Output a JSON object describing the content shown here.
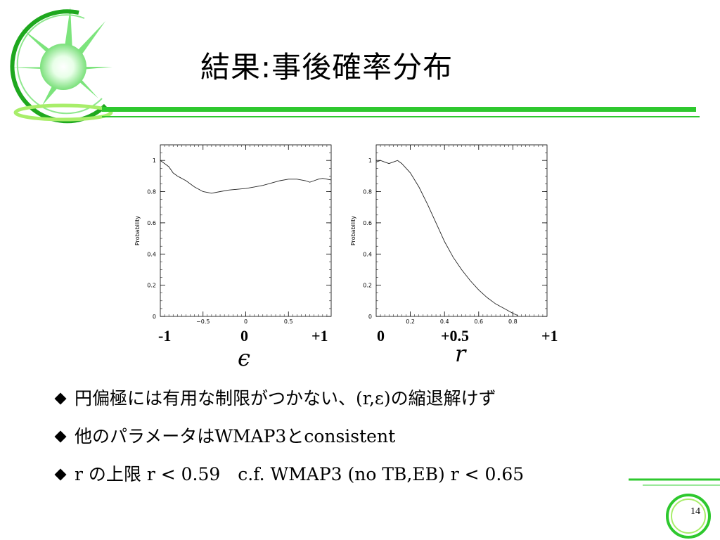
{
  "slide": {
    "title": "結果:事後確率分布",
    "page_number": "14"
  },
  "colors": {
    "accent": "#2ec82e",
    "light_green": "#9be89b",
    "axis": "#000000"
  },
  "icons": {
    "logo": "green-burst-logo-icon",
    "bullet": "diamond-bullet-icon"
  },
  "bullets": [
    "円偏極には有用な制限がつかない、(r,ε)の縮退解けず",
    "他のパラメータはWMAP3とconsistent",
    "r の上限 r < 0.59　c.f. WMAP3 (no TB,EB)  r < 0.65"
  ],
  "chart_data": [
    {
      "type": "line",
      "ylabel": "Probability",
      "xlim": [
        -1,
        1
      ],
      "ylim": [
        0,
        1.1
      ],
      "xticks": [
        "−0.5",
        "0",
        "0.5"
      ],
      "yticks": [
        "0",
        "0.2",
        "0.4",
        "0.6",
        "0.8",
        "1"
      ],
      "big_ticks": [
        "-1",
        "0",
        "+1"
      ],
      "variable_label": "ϵ",
      "x": [
        -1.0,
        -0.95,
        -0.9,
        -0.85,
        -0.8,
        -0.7,
        -0.6,
        -0.5,
        -0.4,
        -0.3,
        -0.2,
        -0.1,
        0.0,
        0.1,
        0.2,
        0.3,
        0.4,
        0.5,
        0.6,
        0.7,
        0.75,
        0.8,
        0.85,
        0.9,
        1.0
      ],
      "y": [
        1.0,
        0.98,
        0.96,
        0.92,
        0.9,
        0.87,
        0.83,
        0.8,
        0.79,
        0.8,
        0.81,
        0.815,
        0.82,
        0.83,
        0.84,
        0.855,
        0.87,
        0.88,
        0.88,
        0.87,
        0.86,
        0.87,
        0.88,
        0.885,
        0.875
      ]
    },
    {
      "type": "line",
      "ylabel": "Probability",
      "xlim": [
        0,
        1
      ],
      "ylim": [
        0,
        1.1
      ],
      "xticks": [
        "0.2",
        "0.4",
        "0.6",
        "0.8"
      ],
      "yticks": [
        "0",
        "0.2",
        "0.4",
        "0.6",
        "0.8",
        "1"
      ],
      "big_ticks": [
        "0",
        "+0.5",
        "+1"
      ],
      "variable_label": "r",
      "x": [
        0.0,
        0.025,
        0.05,
        0.075,
        0.1,
        0.125,
        0.15,
        0.2,
        0.25,
        0.3,
        0.35,
        0.4,
        0.45,
        0.5,
        0.55,
        0.6,
        0.65,
        0.7,
        0.75,
        0.8,
        0.83
      ],
      "y": [
        0.99,
        1.0,
        0.99,
        0.98,
        0.99,
        1.0,
        0.98,
        0.92,
        0.83,
        0.72,
        0.6,
        0.48,
        0.38,
        0.3,
        0.23,
        0.17,
        0.12,
        0.08,
        0.05,
        0.02,
        0.005
      ]
    }
  ]
}
